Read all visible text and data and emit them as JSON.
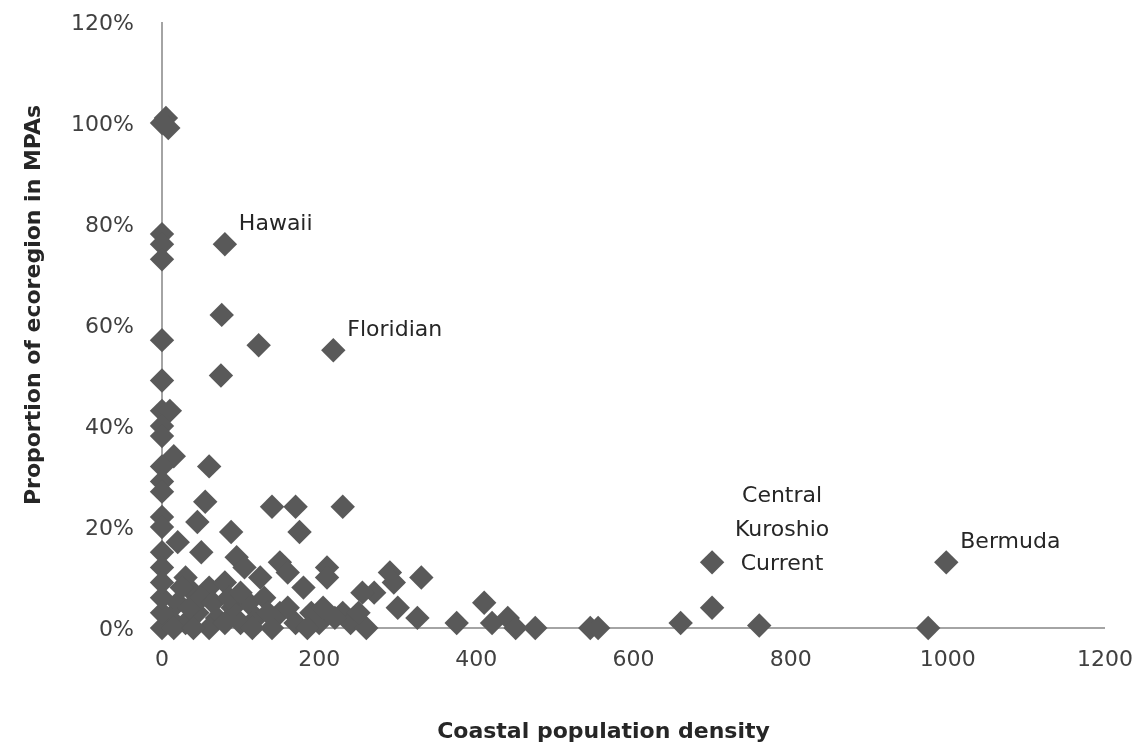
{
  "chart_data": {
    "type": "scatter",
    "xlabel": "Coastal population density",
    "ylabel": "Proportion of ecoregion in MPAs",
    "xlim": [
      0,
      1200
    ],
    "xticks": [
      0,
      200,
      400,
      600,
      800,
      1000,
      1200
    ],
    "ylim": [
      0,
      120
    ],
    "yticks": [
      {
        "value": 0,
        "label": "0%"
      },
      {
        "value": 20,
        "label": "20%"
      },
      {
        "value": 40,
        "label": "40%"
      },
      {
        "value": 60,
        "label": "60%"
      },
      {
        "value": 80,
        "label": "80%"
      },
      {
        "value": 100,
        "label": "100%"
      },
      {
        "value": 120,
        "label": "120%"
      }
    ],
    "grid": false,
    "marker": "diamond",
    "annotations": [
      {
        "text": "Hawaii",
        "x": 80,
        "y": 76
      },
      {
        "text": "Floridian",
        "x": 218,
        "y": 55
      },
      {
        "text": "Central Kuroshio Current",
        "x": 700,
        "y": 13
      },
      {
        "text": "Bermuda",
        "x": 998,
        "y": 13
      }
    ],
    "series": [
      {
        "color": "#595959",
        "x": [
          0,
          5,
          8,
          0,
          0,
          0,
          80,
          0,
          0,
          76,
          75,
          123,
          218,
          0,
          10,
          0,
          0,
          15,
          60,
          0,
          0,
          0,
          55,
          140,
          170,
          230,
          175,
          88,
          45,
          0,
          0,
          95,
          105,
          150,
          160,
          210,
          210,
          125,
          0,
          20,
          50,
          0,
          30,
          290,
          295,
          270,
          255,
          330,
          180,
          60,
          80,
          40,
          300,
          325,
          375,
          410,
          420,
          440,
          450,
          475,
          545,
          555,
          660,
          700,
          700,
          760,
          975,
          998,
          190,
          200,
          230,
          240,
          260,
          250,
          220,
          170,
          150,
          140,
          120,
          100,
          90,
          70,
          60,
          45,
          30,
          20,
          10,
          0,
          0,
          0,
          0,
          15,
          35,
          50,
          65,
          80,
          110,
          130,
          160,
          185,
          205,
          115,
          25,
          40,
          85,
          100,
          135
        ],
        "values": [
          100,
          101,
          99,
          78,
          76,
          73,
          76,
          57,
          49,
          62,
          50,
          56,
          55,
          43,
          43,
          40,
          38,
          34,
          32,
          32,
          29,
          27,
          25,
          24,
          24,
          24,
          19,
          19,
          21,
          22,
          20,
          14,
          12,
          13,
          11,
          12,
          10,
          10,
          15,
          17,
          15,
          12,
          10,
          11,
          9,
          7,
          7,
          10,
          8,
          8,
          9,
          7,
          4,
          2,
          1,
          5,
          1,
          2,
          0,
          0,
          0,
          0,
          1,
          4,
          13,
          0.5,
          0,
          13,
          3,
          1,
          3,
          1,
          0,
          3,
          2,
          1,
          3,
          0,
          2,
          1,
          4,
          2,
          0,
          3,
          1,
          5,
          2,
          0,
          3,
          6,
          9,
          0,
          4,
          6,
          5,
          1,
          5,
          6,
          4,
          0,
          4,
          0,
          8,
          0,
          6,
          7,
          3
        ]
      }
    ]
  }
}
